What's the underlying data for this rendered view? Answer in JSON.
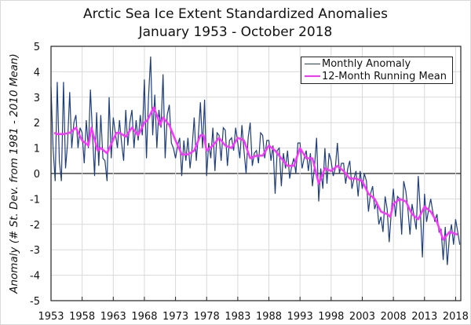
{
  "chart_data": {
    "type": "line",
    "title": "Arctic Sea Ice Extent Standardized Anomalies",
    "subtitle": "January 1953 - October 2018",
    "xlabel": "",
    "ylabel": "Anomaly (# St. Dev. from 1981 - 2010 Mean)",
    "xlim": [
      1953,
      2018.83
    ],
    "ylim": [
      -5,
      5
    ],
    "xticks": [
      "1953",
      "1958",
      "1963",
      "1968",
      "1973",
      "1978",
      "1983",
      "1988",
      "1993",
      "1998",
      "2003",
      "2008",
      "2013",
      "2018"
    ],
    "yticks": [
      "5",
      "4",
      "3",
      "2",
      "1",
      "0",
      "-1",
      "-2",
      "-3",
      "-4",
      "-5"
    ],
    "grid": true,
    "legend_position": "top-right",
    "colors": {
      "monthly": "#1f3e7c",
      "running_mean": "#ff33ff",
      "grid": "#d9d9d9"
    },
    "series": [
      {
        "name": "Monthly Anomaly",
        "sampling": "every 4 months (Jan, May, Sep) from Jan 1953",
        "values": [
          3.4,
          1.0,
          -0.3,
          3.6,
          0.5,
          -0.3,
          3.6,
          0.2,
          1.2,
          3.2,
          1.0,
          2.0,
          2.3,
          1.0,
          1.8,
          1.6,
          0.4,
          2.1,
          1.0,
          3.3,
          1.5,
          -0.1,
          2.4,
          0.3,
          2.3,
          0.6,
          0.5,
          -0.3,
          3.0,
          0.6,
          2.2,
          1.6,
          1.0,
          2.1,
          1.2,
          0.5,
          2.5,
          1.1,
          2.0,
          2.5,
          1.0,
          2.1,
          1.3,
          2.3,
          1.5,
          3.7,
          0.6,
          3.0,
          4.6,
          1.5,
          3.1,
          1.0,
          2.5,
          1.8,
          3.9,
          0.6,
          2.3,
          2.7,
          1.2,
          1.0,
          0.6,
          1.1,
          1.4,
          -0.1,
          1.3,
          0.5,
          1.4,
          0.2,
          1.0,
          2.2,
          0.5,
          1.5,
          2.8,
          1.0,
          2.9,
          -0.1,
          1.2,
          0.6,
          1.8,
          0.1,
          1.6,
          1.5,
          0.5,
          1.8,
          1.7,
          0.3,
          1.3,
          1.4,
          0.9,
          1.8,
          1.2,
          0.6,
          1.9,
          0.9,
          0.0,
          1.4,
          2.0,
          0.3,
          0.8,
          0.9,
          0.4,
          1.6,
          1.5,
          0.6,
          1.3,
          1.3,
          0.5,
          1.1,
          -0.8,
          0.9,
          1.0,
          -0.5,
          0.8,
          0.2,
          0.9,
          -0.2,
          0.3,
          0.6,
          0.0,
          1.2,
          1.2,
          0.2,
          0.6,
          0.9,
          0.1,
          0.8,
          -0.5,
          0.3,
          1.4,
          -1.1,
          0.2,
          -0.6,
          1.0,
          -0.4,
          0.8,
          0.5,
          -0.1,
          0.2,
          1.2,
          0.0,
          0.4,
          0.4,
          -0.4,
          0.2,
          0.5,
          -0.6,
          -0.2,
          0.1,
          -0.9,
          0.1,
          -0.6,
          0.0,
          -0.3,
          -1.5,
          -0.8,
          -0.5,
          -1.4,
          -1.1,
          -2.0,
          -1.7,
          -2.3,
          -0.9,
          -1.4,
          -2.7,
          -1.5,
          -0.6,
          -1.7,
          -0.9,
          -1.0,
          -2.4,
          -0.3,
          -0.7,
          -1.4,
          -2.4,
          -1.2,
          -1.7,
          -2.2,
          -0.1,
          -1.5,
          -3.3,
          -0.8,
          -1.9,
          -1.4,
          -1.0,
          -1.5,
          -1.9,
          -1.6,
          -2.3,
          -2.2,
          -3.4,
          -2.1,
          -3.6,
          -2.5,
          -2.0,
          -2.8,
          -1.8,
          -2.3,
          -2.8
        ]
      },
      {
        "name": "12-Month Running Mean",
        "x": [
          1953.5,
          1954,
          1955,
          1956,
          1957,
          1958,
          1959,
          1959.5,
          1960.5,
          1961,
          1962,
          1963.5,
          1964,
          1965,
          1966,
          1967,
          1968,
          1968.5,
          1969.5,
          1970,
          1970.5,
          1971,
          1972,
          1973,
          1974,
          1975,
          1976,
          1977,
          1977.5,
          1978,
          1979,
          1980,
          1981,
          1982,
          1983,
          1984,
          1985,
          1986,
          1987,
          1988,
          1989,
          1990,
          1991,
          1992,
          1993,
          1994,
          1995,
          1996,
          1997,
          1998,
          1999,
          2000,
          2001,
          2002,
          2003,
          2004,
          2005,
          2006,
          2007,
          2007.5,
          2008,
          2009,
          2010,
          2011,
          2012,
          2013,
          2014,
          2015,
          2016,
          2017,
          2018.3
        ],
        "values": [
          1.6,
          1.55,
          1.55,
          1.6,
          1.8,
          1.3,
          1.1,
          1.8,
          0.9,
          1.0,
          0.8,
          1.6,
          1.6,
          1.45,
          1.8,
          1.5,
          2.0,
          2.1,
          2.6,
          2.3,
          1.9,
          2.2,
          1.9,
          1.3,
          0.75,
          0.75,
          0.9,
          1.5,
          1.5,
          0.9,
          1.1,
          1.4,
          1.1,
          1.0,
          1.4,
          1.3,
          0.6,
          0.7,
          0.7,
          1.1,
          0.9,
          0.6,
          0.3,
          0.3,
          1.0,
          0.6,
          0.6,
          -0.4,
          0.2,
          0.1,
          0.3,
          0.1,
          -0.2,
          -0.2,
          -0.3,
          -0.8,
          -1.0,
          -1.5,
          -1.6,
          -1.7,
          -1.2,
          -1.0,
          -1.1,
          -1.6,
          -1.8,
          -1.3,
          -1.5,
          -1.9,
          -2.6,
          -2.3,
          -2.4
        ]
      }
    ]
  }
}
